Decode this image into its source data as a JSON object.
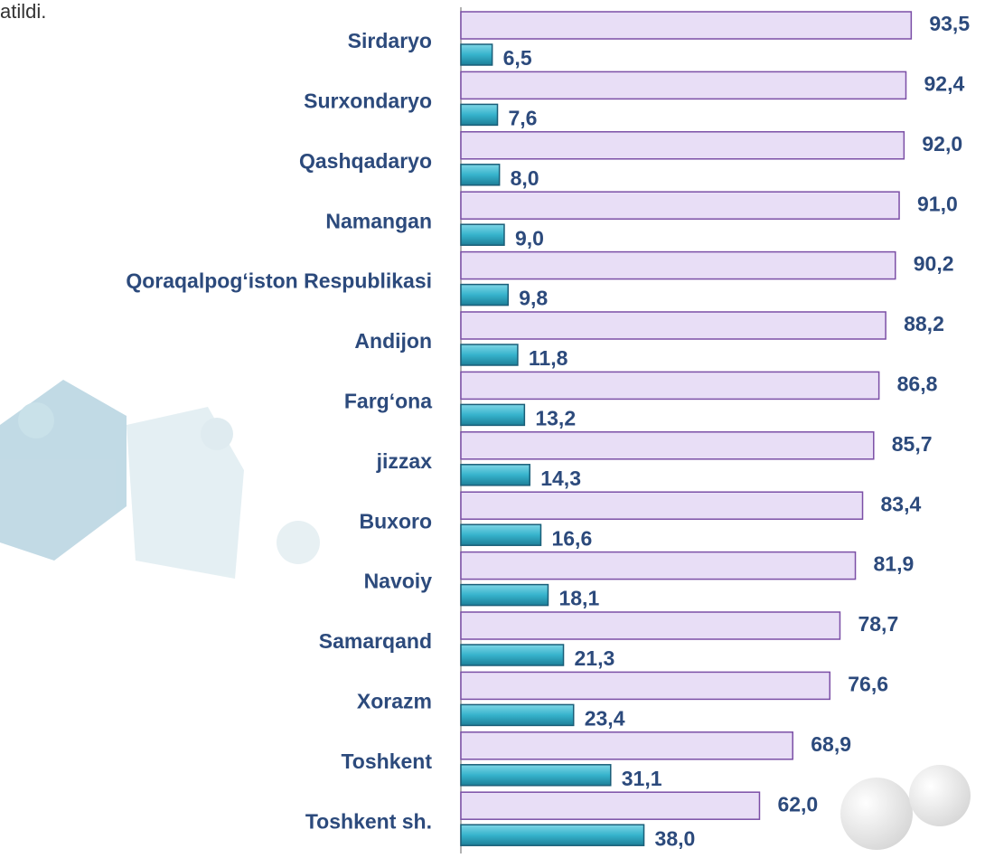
{
  "chart_data": {
    "type": "bar",
    "orientation": "horizontal",
    "note": "atildi.",
    "categories": [
      "Sirdaryo",
      "Surxondaryo",
      "Qashqadaryo",
      "Namangan",
      "Qoraqalpog‘iston Respublikasi",
      "Andijon",
      "Farg‘ona",
      "jizzax",
      "Buxoro",
      "Navoiy",
      "Samarqand",
      "Xorazm",
      "Toshkent",
      "Toshkent sh."
    ],
    "series": [
      {
        "color": "#e8def6",
        "values": [
          93.5,
          92.4,
          92.0,
          91.0,
          90.2,
          88.2,
          86.8,
          85.7,
          83.4,
          81.9,
          78.7,
          76.6,
          68.9,
          62.0
        ],
        "value_labels": [
          "93,5",
          "92,4",
          "92,0",
          "91,0",
          "90,2",
          "88,2",
          "86,8",
          "85,7",
          "83,4",
          "81,9",
          "78,7",
          "76,6",
          "68,9",
          "62,0"
        ]
      },
      {
        "color": "#36b3cc",
        "values": [
          6.5,
          7.6,
          8.0,
          9.0,
          9.8,
          11.8,
          13.2,
          14.3,
          16.6,
          18.1,
          21.3,
          23.4,
          31.1,
          38.0
        ],
        "value_labels": [
          "6,5",
          "7,6",
          "8,0",
          "9,0",
          "9,8",
          "11,8",
          "13,2",
          "14,3",
          "16,6",
          "18,1",
          "21,3",
          "23,4",
          "31,1",
          "38,0"
        ]
      }
    ],
    "xlim": [
      0,
      100
    ]
  }
}
